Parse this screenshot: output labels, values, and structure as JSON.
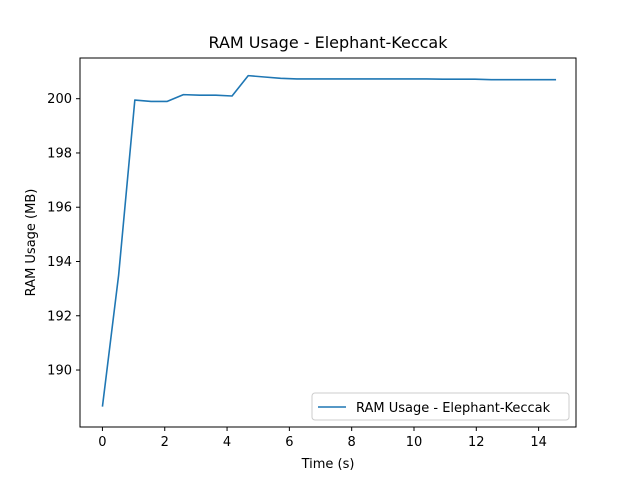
{
  "chart_data": {
    "type": "line",
    "title": "RAM Usage - Elephant-Keccak",
    "xlabel": "Time (s)",
    "ylabel": "RAM Usage (MB)",
    "xlim": [
      -0.72,
      15.2
    ],
    "ylim": [
      187.9,
      201.5
    ],
    "xticks": [
      0,
      2,
      4,
      6,
      8,
      10,
      12,
      14
    ],
    "yticks": [
      190,
      192,
      194,
      196,
      198,
      200
    ],
    "grid": false,
    "legend_position": "lower-right",
    "series": [
      {
        "name": "RAM Usage - Elephant-Keccak",
        "color": "#1f77b4",
        "x": [
          0.0,
          0.52,
          1.04,
          1.56,
          2.08,
          2.6,
          3.12,
          3.64,
          4.16,
          4.68,
          5.2,
          5.72,
          6.24,
          6.76,
          7.28,
          7.8,
          8.32,
          8.84,
          9.36,
          9.88,
          10.4,
          10.92,
          11.44,
          11.96,
          12.48,
          13.0,
          13.52,
          14.04,
          14.56
        ],
        "y": [
          188.65,
          193.5,
          199.95,
          199.9,
          199.9,
          200.15,
          200.13,
          200.13,
          200.1,
          200.85,
          200.8,
          200.75,
          200.73,
          200.73,
          200.73,
          200.73,
          200.73,
          200.73,
          200.73,
          200.73,
          200.73,
          200.72,
          200.72,
          200.72,
          200.7,
          200.7,
          200.7,
          200.7,
          200.7
        ]
      }
    ]
  }
}
